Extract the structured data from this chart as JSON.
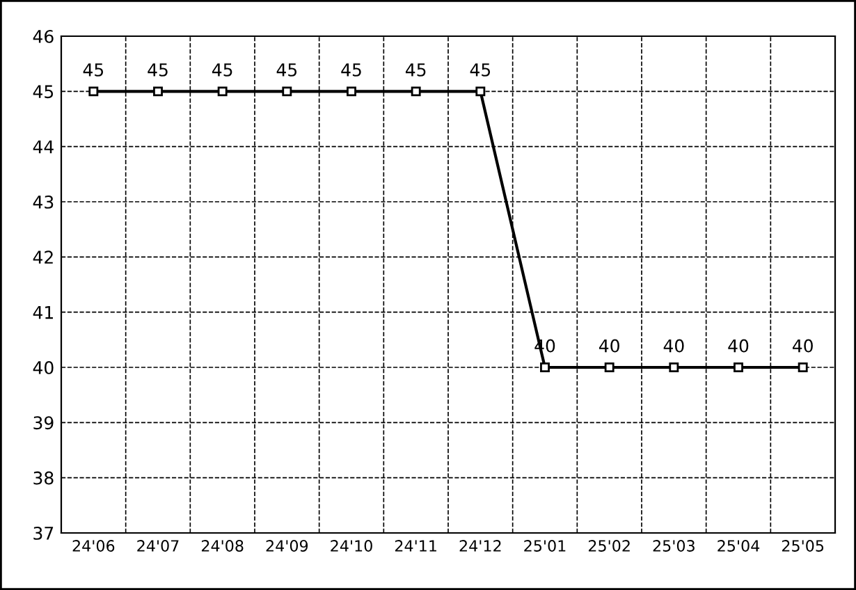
{
  "chart_data": {
    "type": "line",
    "categories": [
      "24'06",
      "24'07",
      "24'08",
      "24'09",
      "24'10",
      "24'11",
      "24'12",
      "25'01",
      "25'02",
      "25'03",
      "25'04",
      "25'05"
    ],
    "series": [
      {
        "color": "#000000",
        "values": [
          45,
          45,
          45,
          45,
          45,
          45,
          45,
          40,
          40,
          40,
          40,
          40
        ]
      }
    ],
    "ylim": [
      37,
      46
    ],
    "yticks": [
      37,
      38,
      39,
      40,
      41,
      42,
      43,
      44,
      45,
      46
    ],
    "grid": true,
    "marker": "square",
    "line_style": "solid",
    "data_labels": true
  }
}
